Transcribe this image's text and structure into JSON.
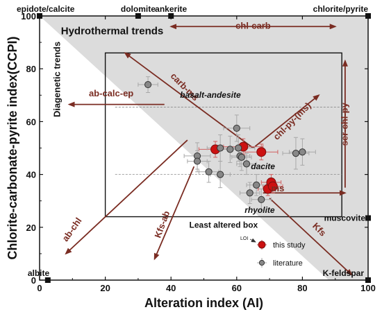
{
  "chart_data": {
    "type": "scatter",
    "title": "",
    "xlabel": "Alteration index  (AI)",
    "ylabel": "Chlorite-carbonate-pyrite index(CCPI)",
    "xlim": [
      0,
      100
    ],
    "ylim": [
      0,
      100
    ],
    "xticks": [
      0,
      20,
      40,
      60,
      80,
      100
    ],
    "yticks": [
      0,
      20,
      40,
      60,
      80,
      100
    ],
    "grid": false,
    "colors": {
      "study": "#cc1111",
      "literature": "#888888",
      "arrow": "#7a2c22",
      "shade": "#dcdcdc"
    },
    "shaded_region": [
      [
        0,
        100
      ],
      [
        100,
        100
      ],
      [
        100,
        0
      ],
      [
        88,
        0
      ]
    ],
    "least_altered_box": {
      "x": [
        20,
        92
      ],
      "y": [
        24,
        86
      ],
      "label": "Least altered box"
    },
    "dividers": [
      {
        "y": 65.5,
        "x": [
          23,
          92
        ]
      },
      {
        "y": 40,
        "x": [
          23,
          92
        ]
      }
    ],
    "rock_labels": [
      {
        "text": "basalt-andesite",
        "x": 52,
        "y": 69
      },
      {
        "text": "dacite",
        "x": 68,
        "y": 42
      },
      {
        "text": "rhyolite",
        "x": 67,
        "y": 25.5
      }
    ],
    "minerals": [
      {
        "text": "epidote/calcite",
        "x": 0,
        "y": 100
      },
      {
        "text": "dolomite",
        "x": 30,
        "y": 100
      },
      {
        "text": "ankerite",
        "x": 40,
        "y": 100
      },
      {
        "text": "chlorite/pyrite",
        "x": 100,
        "y": 100
      },
      {
        "text": "muscovite",
        "x": 100,
        "y": 23.5
      },
      {
        "text": "albite",
        "x": 2.5,
        "y": 0
      },
      {
        "text": "K-feldspar",
        "x": 100,
        "y": 0
      }
    ],
    "trend_headers": [
      "Hydrothermal trends",
      "Diagenetic trends"
    ],
    "arrows": [
      {
        "label": "chl-carb",
        "from": [
          40,
          96
        ],
        "to": [
          90,
          96
        ],
        "double": true
      },
      {
        "label": "ser-chl-py",
        "from": [
          93,
          35
        ],
        "to": [
          93,
          83
        ],
        "double": false
      },
      {
        "label": "ab-calc-ep",
        "from": [
          38,
          66.5
        ],
        "to": [
          9,
          66.5
        ],
        "double": false
      },
      {
        "label": "carb-ms",
        "from": [
          65,
          50
        ],
        "to": [
          26,
          86
        ],
        "double": false
      },
      {
        "label": "chl-py-(ms)",
        "from": [
          65,
          50
        ],
        "to": [
          85,
          70
        ],
        "double": false
      },
      {
        "label": "ms",
        "from": [
          68,
          33
        ],
        "to": [
          93,
          33
        ],
        "double": false
      },
      {
        "label": "Kfs",
        "from": [
          70,
          31
        ],
        "to": [
          95,
          2
        ],
        "double": false
      },
      {
        "label": "ab-chl",
        "from": [
          45,
          53
        ],
        "to": [
          8,
          10
        ],
        "double": false
      },
      {
        "label": "Kfs-ab",
        "from": [
          47,
          43
        ],
        "to": [
          35,
          8
        ],
        "double": false
      }
    ],
    "series": [
      {
        "name": "this study",
        "color": "#cc1111",
        "points": [
          {
            "x": 53.5,
            "y": 49.5,
            "xerr": 5,
            "yerr": 3
          },
          {
            "x": 62,
            "y": 50.5,
            "xerr": 6,
            "yerr": 3
          },
          {
            "x": 67.5,
            "y": 48.5,
            "xerr": 5,
            "yerr": 3
          },
          {
            "x": 69.5,
            "y": 34.5,
            "xerr": 3,
            "yerr": 2.5
          },
          {
            "x": 70.5,
            "y": 37,
            "xerr": 3,
            "yerr": 3
          },
          {
            "x": 71,
            "y": 35.5,
            "xerr": 3,
            "yerr": 2.5
          }
        ]
      },
      {
        "name": "literature",
        "color": "#888888",
        "points": [
          {
            "x": 33,
            "y": 74,
            "xerr": 3,
            "yerr": 3
          },
          {
            "x": 48,
            "y": 47,
            "xerr": 4,
            "yerr": 5
          },
          {
            "x": 48,
            "y": 45,
            "xerr": 3,
            "yerr": 4
          },
          {
            "x": 51.5,
            "y": 41,
            "xerr": 3,
            "yerr": 4
          },
          {
            "x": 55,
            "y": 50,
            "xerr": 4,
            "yerr": 5
          },
          {
            "x": 55,
            "y": 40,
            "xerr": 3,
            "yerr": 5
          },
          {
            "x": 58,
            "y": 49.5,
            "xerr": 4,
            "yerr": 5
          },
          {
            "x": 60,
            "y": 57.5,
            "xerr": 4,
            "yerr": 5
          },
          {
            "x": 60.5,
            "y": 50,
            "xerr": 5,
            "yerr": 5
          },
          {
            "x": 61,
            "y": 47,
            "xerr": 3,
            "yerr": 4
          },
          {
            "x": 61.5,
            "y": 46.5,
            "xerr": 3,
            "yerr": 5
          },
          {
            "x": 63,
            "y": 44,
            "xerr": 3,
            "yerr": 4
          },
          {
            "x": 64,
            "y": 33,
            "xerr": 3,
            "yerr": 4
          },
          {
            "x": 66,
            "y": 36,
            "xerr": 3,
            "yerr": 4
          },
          {
            "x": 67.5,
            "y": 30.5,
            "xerr": 3,
            "yerr": 4
          },
          {
            "x": 78,
            "y": 48,
            "xerr": 4,
            "yerr": 6
          },
          {
            "x": 80,
            "y": 48.5,
            "xerr": 4,
            "yerr": 5
          }
        ]
      }
    ],
    "legend": {
      "placement": "bottom-right",
      "entries": [
        "this study",
        "literature"
      ],
      "note": "LOI"
    }
  }
}
